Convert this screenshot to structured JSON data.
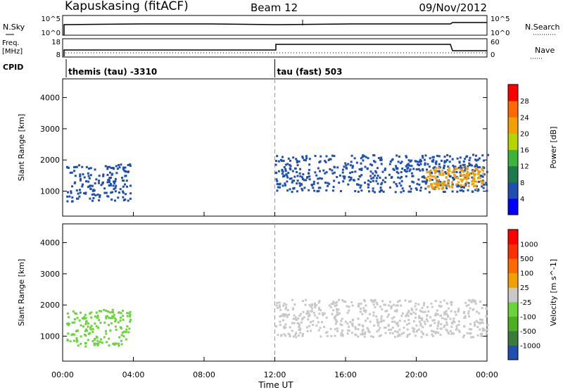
{
  "header": {
    "station": "Kapuskasing (fitACF)",
    "beam": "Beam 12",
    "date": "09/Nov/2012"
  },
  "top_panels": {
    "nsky_label": "N.Sky",
    "nsky_ticks": [
      "10^5",
      "10^0"
    ],
    "nsearch_label": "N.Search",
    "nsearch_ticks": [
      "10^5",
      "10^0"
    ],
    "freq_label_1": "Freq.",
    "freq_label_2": "[MHz]",
    "freq_ticks": [
      "18",
      "8"
    ],
    "nave_label": "Nave",
    "nave_ticks": [
      "60",
      "0"
    ],
    "cpid_label": "CPID",
    "cpid_segments": [
      {
        "start_h": 0.2,
        "end_h": 12.0,
        "label": "themis (tau) -3310"
      },
      {
        "start_h": 12.0,
        "end_h": 24.0,
        "label": "tau (fast) 503"
      }
    ]
  },
  "x_axis": {
    "label": "Time UT",
    "ticks": [
      "00:00",
      "04:00",
      "08:00",
      "12:00",
      "16:00",
      "20:00",
      "00:00"
    ],
    "range_h": [
      0,
      24
    ]
  },
  "chart_data": [
    {
      "type": "heatmap",
      "name": "Power",
      "ylabel": "Slant Range [km]",
      "ylim": [
        200,
        4600
      ],
      "y_ticks": [
        "4000",
        "3000",
        "2000",
        "1000"
      ],
      "colorbar_label": "Power [dB]",
      "colorbar_ticks": [
        "28",
        "24",
        "20",
        "16",
        "12",
        "8",
        "4"
      ],
      "colorbar_colors": [
        "#0000ff",
        "#1f4fb0",
        "#1f7a4a",
        "#3ab53a",
        "#b8d400",
        "#f0a000",
        "#ff6a00",
        "#ff0000"
      ],
      "regions": [
        {
          "t0": 0.2,
          "t1": 3.8,
          "r0": 700,
          "r1": 1900,
          "color": "#1f4fb0"
        },
        {
          "t0": 12.0,
          "t1": 24.0,
          "r0": 1000,
          "r1": 2200,
          "color": "#1f4fb0"
        },
        {
          "t0": 20.5,
          "t1": 23.8,
          "r0": 1100,
          "r1": 1800,
          "color": "#f0a000"
        }
      ]
    },
    {
      "type": "heatmap",
      "name": "Velocity",
      "ylabel": "Slant Range [km]",
      "ylim": [
        200,
        4600
      ],
      "y_ticks": [
        "4000",
        "3000",
        "2000",
        "1000"
      ],
      "colorbar_label": "Velocity [m s^-1]",
      "colorbar_ticks": [
        "1000",
        "500",
        "100",
        "25",
        "-25",
        "-100",
        "-500",
        "-1000"
      ],
      "colorbar_colors": [
        "#1f4fb0",
        "#3a7a3a",
        "#4caf20",
        "#6ad43a",
        "#c8c8c8",
        "#f0a000",
        "#ff6a00",
        "#ff3000",
        "#ff0000"
      ],
      "regions": [
        {
          "t0": 0.2,
          "t1": 3.8,
          "r0": 700,
          "r1": 1900,
          "color": "#6ad43a"
        },
        {
          "t0": 12.0,
          "t1": 24.0,
          "r0": 1000,
          "r1": 2200,
          "color": "#c8c8c8"
        }
      ]
    }
  ]
}
